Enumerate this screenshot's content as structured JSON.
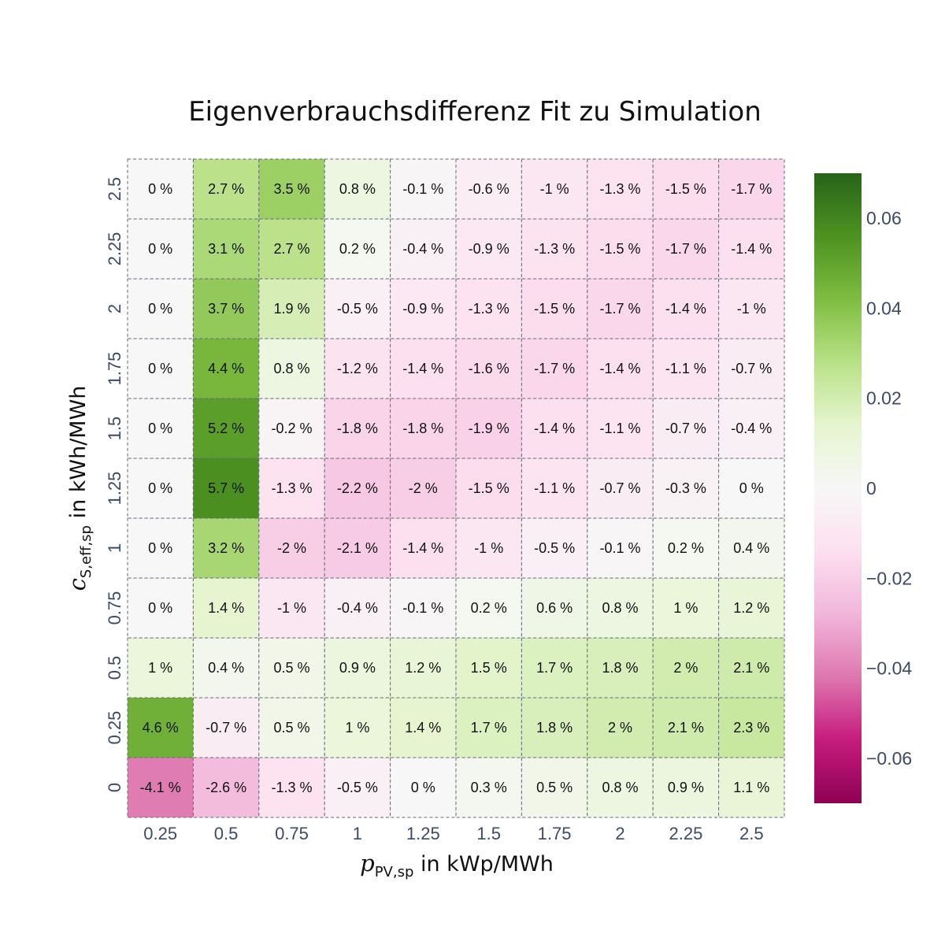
{
  "chart_data": {
    "type": "heatmap",
    "title": "Eigenverbrauchsdifferenz Fit zu Simulation",
    "xlabel": {
      "symbol": "p",
      "subscript": "PV,sp",
      "text": " in kWp/MWh"
    },
    "ylabel": {
      "symbol": "c",
      "subscript": "S,eff,sp",
      "text": " in kWh/MWh"
    },
    "x": [
      "0.25",
      "0.5",
      "0.75",
      "1",
      "1.25",
      "1.5",
      "1.75",
      "2",
      "2.25",
      "2.5"
    ],
    "y": [
      "0",
      "0.25",
      "0.5",
      "0.75",
      "1",
      "1.25",
      "1.5",
      "1.75",
      "2",
      "2.25",
      "2.5"
    ],
    "z": [
      [
        -0.041,
        -0.026,
        -0.013,
        -0.005,
        0.0,
        0.003,
        0.005,
        0.008,
        0.009,
        0.011
      ],
      [
        0.046,
        -0.007,
        0.005,
        0.01,
        0.014,
        0.017,
        0.018,
        0.02,
        0.021,
        0.023
      ],
      [
        0.01,
        0.004,
        0.005,
        0.009,
        0.012,
        0.015,
        0.017,
        0.018,
        0.02,
        0.021
      ],
      [
        0.0,
        0.014,
        -0.01,
        -0.004,
        -0.001,
        0.002,
        0.006,
        0.008,
        0.01,
        0.012
      ],
      [
        0.0,
        0.032,
        -0.02,
        -0.021,
        -0.014,
        -0.01,
        -0.005,
        -0.001,
        0.002,
        0.004
      ],
      [
        0.0,
        0.057,
        -0.013,
        -0.022,
        -0.02,
        -0.015,
        -0.011,
        -0.007,
        -0.003,
        0.0
      ],
      [
        0.0,
        0.052,
        -0.002,
        -0.018,
        -0.018,
        -0.019,
        -0.014,
        -0.011,
        -0.007,
        -0.004
      ],
      [
        0.0,
        0.044,
        0.008,
        -0.012,
        -0.014,
        -0.016,
        -0.017,
        -0.014,
        -0.011,
        -0.007
      ],
      [
        0.0,
        0.037,
        0.019,
        -0.005,
        -0.009,
        -0.013,
        -0.015,
        -0.017,
        -0.014,
        -0.01
      ],
      [
        0.0,
        0.031,
        0.027,
        0.002,
        -0.004,
        -0.009,
        -0.013,
        -0.015,
        -0.017,
        -0.014
      ],
      [
        0.0,
        0.027,
        0.035,
        0.008,
        -0.001,
        -0.006,
        -0.01,
        -0.013,
        -0.015,
        -0.017
      ]
    ],
    "cell_labels": [
      [
        "-4.1 %",
        "-2.6 %",
        "-1.3 %",
        "-0.5 %",
        "0 %",
        "0.3 %",
        "0.5 %",
        "0.8 %",
        "0.9 %",
        "1.1 %"
      ],
      [
        "4.6 %",
        "-0.7 %",
        "0.5 %",
        "1 %",
        "1.4 %",
        "1.7 %",
        "1.8 %",
        "2 %",
        "2.1 %",
        "2.3 %"
      ],
      [
        "1 %",
        "0.4 %",
        "0.5 %",
        "0.9 %",
        "1.2 %",
        "1.5 %",
        "1.7 %",
        "1.8 %",
        "2 %",
        "2.1 %"
      ],
      [
        "0 %",
        "1.4 %",
        "-1 %",
        "-0.4 %",
        "-0.1 %",
        "0.2 %",
        "0.6 %",
        "0.8 %",
        "1 %",
        "1.2 %"
      ],
      [
        "0 %",
        "3.2 %",
        "-2 %",
        "-2.1 %",
        "-1.4 %",
        "-1 %",
        "-0.5 %",
        "-0.1 %",
        "0.2 %",
        "0.4 %"
      ],
      [
        "0 %",
        "5.7 %",
        "-1.3 %",
        "-2.2 %",
        "-2 %",
        "-1.5 %",
        "-1.1 %",
        "-0.7 %",
        "-0.3 %",
        "0 %"
      ],
      [
        "0 %",
        "5.2 %",
        "-0.2 %",
        "-1.8 %",
        "-1.8 %",
        "-1.9 %",
        "-1.4 %",
        "-1.1 %",
        "-0.7 %",
        "-0.4 %"
      ],
      [
        "0 %",
        "4.4 %",
        "0.8 %",
        "-1.2 %",
        "-1.4 %",
        "-1.6 %",
        "-1.7 %",
        "-1.4 %",
        "-1.1 %",
        "-0.7 %"
      ],
      [
        "0 %",
        "3.7 %",
        "1.9 %",
        "-0.5 %",
        "-0.9 %",
        "-1.3 %",
        "-1.5 %",
        "-1.7 %",
        "-1.4 %",
        "-1 %"
      ],
      [
        "0 %",
        "3.1 %",
        "2.7 %",
        "0.2 %",
        "-0.4 %",
        "-0.9 %",
        "-1.3 %",
        "-1.5 %",
        "-1.7 %",
        "-1.4 %"
      ],
      [
        "0 %",
        "2.7 %",
        "3.5 %",
        "0.8 %",
        "-0.1 %",
        "-0.6 %",
        "-1 %",
        "-1.3 %",
        "-1.5 %",
        "-1.7 %"
      ]
    ],
    "colorscale": "PiYG",
    "zlim": [
      -0.07,
      0.07
    ],
    "colorbar_ticks": [
      0.06,
      0.04,
      0.02,
      0,
      -0.02,
      -0.04,
      -0.06
    ],
    "colorbar_tick_labels": [
      "0.06",
      "0.04",
      "0.02",
      "0",
      "−0.02",
      "−0.04",
      "−0.06"
    ],
    "grid": "dashed cell borders",
    "legend": "colorbar-right"
  }
}
